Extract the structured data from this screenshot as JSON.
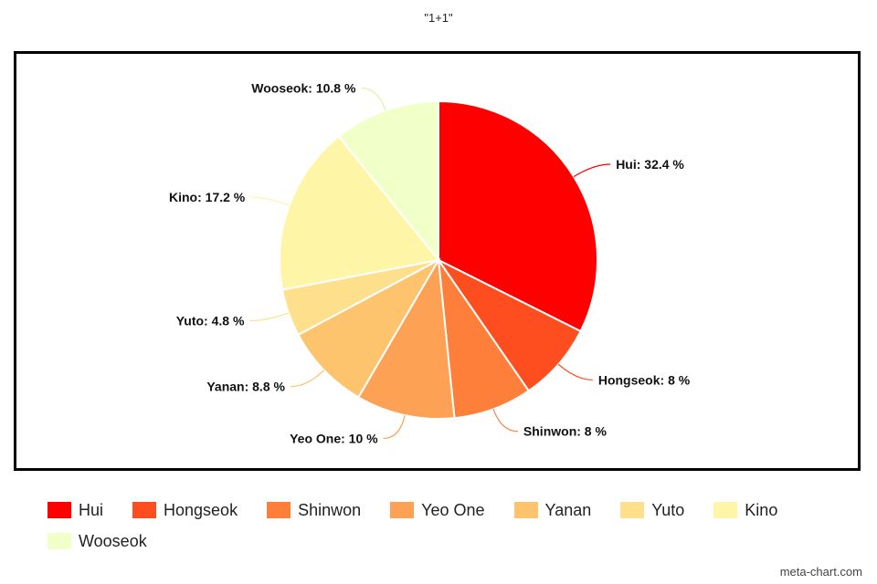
{
  "chart_data": {
    "type": "pie",
    "title": "\"1+1\"",
    "slices": [
      {
        "name": "Hui",
        "value": 32.4,
        "label": "Hui: 32.4 %",
        "color": "#ff0000"
      },
      {
        "name": "Hongseok",
        "value": 8,
        "label": "Hongseok: 8 %",
        "color": "#fe4e20"
      },
      {
        "name": "Shinwon",
        "value": 8,
        "label": "Shinwon: 8 %",
        "color": "#fd7f3a"
      },
      {
        "name": "Yeo One",
        "value": 10,
        "label": "Yeo One: 10 %",
        "color": "#fda154"
      },
      {
        "name": "Yanan",
        "value": 8.8,
        "label": "Yanan: 8.8 %",
        "color": "#fdc46d"
      },
      {
        "name": "Yuto",
        "value": 4.8,
        "label": "Yuto: 4.8 %",
        "color": "#fee08c"
      },
      {
        "name": "Kino",
        "value": 17.2,
        "label": "Kino: 17.2 %",
        "color": "#fef5a6"
      },
      {
        "name": "Wooseok",
        "value": 10.8,
        "label": "Wooseok: 10.8 %",
        "color": "#f1ffc9"
      }
    ],
    "legend": "bottom"
  },
  "watermark": "meta-chart.com"
}
